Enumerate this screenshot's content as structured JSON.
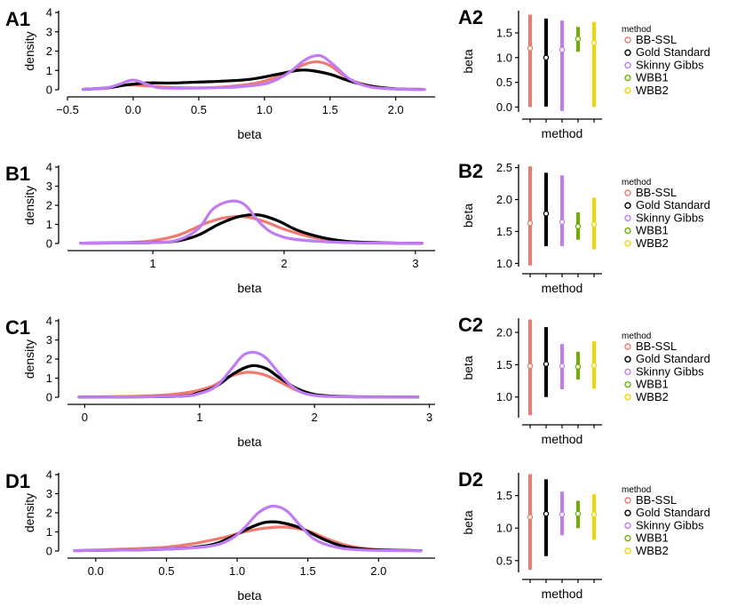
{
  "colors": {
    "BB-SSL": "#f07a70",
    "Gold Standard": "#000000",
    "Skinny Gibbs": "#c07cf5",
    "WBB1": "#6fae00",
    "WBB2": "#f2d400"
  },
  "chart_data": [
    {
      "id": "A1",
      "type": "line",
      "label": "A1",
      "xlabel": "beta",
      "ylabel": "density",
      "xlim": [
        -0.5,
        2.3
      ],
      "ylim": [
        0,
        4
      ],
      "xticks": [
        -0.5,
        0.0,
        0.5,
        1.0,
        1.5,
        2.0
      ],
      "xtick_labels": [
        "−0.5",
        "0.0",
        "0.5",
        "1.0",
        "1.5",
        "2.0"
      ],
      "yticks": [
        0,
        1,
        2,
        3,
        4
      ],
      "series": [
        {
          "name": "BB-SSL",
          "x": [
            -0.38,
            -0.2,
            -0.05,
            0.1,
            0.3,
            0.5,
            0.7,
            0.9,
            1.05,
            1.2,
            1.3,
            1.4,
            1.5,
            1.6,
            1.7,
            1.85,
            2.0,
            2.2
          ],
          "y": [
            0.02,
            0.08,
            0.25,
            0.2,
            0.12,
            0.1,
            0.15,
            0.3,
            0.55,
            0.95,
            1.3,
            1.45,
            1.25,
            0.75,
            0.4,
            0.15,
            0.05,
            0.02
          ]
        },
        {
          "name": "Gold Standard",
          "x": [
            -0.38,
            -0.2,
            -0.05,
            0.1,
            0.3,
            0.5,
            0.7,
            0.9,
            1.1,
            1.25,
            1.35,
            1.5,
            1.65,
            1.8,
            2.0,
            2.2
          ],
          "y": [
            0.02,
            0.1,
            0.25,
            0.35,
            0.35,
            0.4,
            0.45,
            0.55,
            0.8,
            1.0,
            1.0,
            0.8,
            0.45,
            0.2,
            0.05,
            0.02
          ]
        },
        {
          "name": "Skinny Gibbs",
          "x": [
            -0.38,
            -0.2,
            -0.1,
            0.0,
            0.1,
            0.2,
            0.4,
            0.6,
            0.8,
            1.0,
            1.1,
            1.2,
            1.3,
            1.38,
            1.45,
            1.55,
            1.65,
            1.8,
            2.0,
            2.22
          ],
          "y": [
            0.02,
            0.1,
            0.3,
            0.5,
            0.3,
            0.1,
            0.08,
            0.1,
            0.15,
            0.3,
            0.55,
            0.95,
            1.5,
            1.75,
            1.7,
            1.15,
            0.55,
            0.15,
            0.04,
            0.01
          ]
        }
      ]
    },
    {
      "id": "B1",
      "type": "line",
      "label": "B1",
      "xlabel": "beta",
      "ylabel": "density",
      "xlim": [
        0.35,
        3.15
      ],
      "ylim": [
        0,
        4
      ],
      "xticks": [
        1,
        2,
        3
      ],
      "xtick_labels": [
        "1",
        "2",
        "3"
      ],
      "yticks": [
        0,
        1,
        2,
        3,
        4
      ],
      "series": [
        {
          "name": "BB-SSL",
          "x": [
            0.45,
            0.8,
            1.0,
            1.2,
            1.4,
            1.55,
            1.7,
            1.85,
            2.0,
            2.2,
            2.4,
            2.6,
            3.05
          ],
          "y": [
            0.02,
            0.05,
            0.15,
            0.45,
            1.05,
            1.35,
            1.4,
            1.15,
            0.75,
            0.35,
            0.15,
            0.05,
            0.01
          ]
        },
        {
          "name": "Gold Standard",
          "x": [
            0.45,
            1.0,
            1.2,
            1.35,
            1.5,
            1.65,
            1.8,
            1.95,
            2.1,
            2.3,
            2.5,
            2.8,
            3.05
          ],
          "y": [
            0.02,
            0.05,
            0.15,
            0.45,
            1.0,
            1.4,
            1.5,
            1.2,
            0.7,
            0.3,
            0.1,
            0.03,
            0.01
          ]
        },
        {
          "name": "Skinny Gibbs",
          "x": [
            0.45,
            1.0,
            1.2,
            1.35,
            1.45,
            1.55,
            1.65,
            1.72,
            1.8,
            1.9,
            2.05,
            2.3,
            2.6,
            3.05
          ],
          "y": [
            0.02,
            0.05,
            0.2,
            0.8,
            1.75,
            2.15,
            2.2,
            1.9,
            1.2,
            0.6,
            0.25,
            0.1,
            0.03,
            0.01
          ]
        }
      ]
    },
    {
      "id": "C1",
      "type": "line",
      "label": "C1",
      "xlabel": "beta",
      "ylabel": "density",
      "xlim": [
        -0.15,
        3.05
      ],
      "ylim": [
        0,
        4
      ],
      "xticks": [
        0,
        1,
        2,
        3
      ],
      "xtick_labels": [
        "0",
        "1",
        "2",
        "3"
      ],
      "yticks": [
        0,
        1,
        2,
        3,
        4
      ],
      "series": [
        {
          "name": "BB-SSL",
          "x": [
            -0.05,
            0.4,
            0.7,
            0.9,
            1.1,
            1.25,
            1.4,
            1.55,
            1.7,
            1.85,
            2.0,
            2.3,
            2.9
          ],
          "y": [
            0.01,
            0.05,
            0.12,
            0.25,
            0.55,
            1.05,
            1.3,
            1.2,
            0.8,
            0.35,
            0.12,
            0.03,
            0.01
          ]
        },
        {
          "name": "Gold Standard",
          "x": [
            -0.05,
            0.8,
            1.0,
            1.15,
            1.3,
            1.45,
            1.58,
            1.7,
            1.85,
            2.0,
            2.2,
            2.5,
            2.9
          ],
          "y": [
            0.01,
            0.05,
            0.25,
            0.6,
            1.25,
            1.65,
            1.5,
            1.0,
            0.45,
            0.15,
            0.05,
            0.02,
            0.01
          ]
        },
        {
          "name": "Skinny Gibbs",
          "x": [
            -0.05,
            0.8,
            1.0,
            1.15,
            1.28,
            1.38,
            1.48,
            1.58,
            1.7,
            1.82,
            1.95,
            2.2,
            2.9
          ],
          "y": [
            0.01,
            0.05,
            0.2,
            0.6,
            1.5,
            2.2,
            2.35,
            2.05,
            1.2,
            0.5,
            0.15,
            0.03,
            0.01
          ]
        }
      ]
    },
    {
      "id": "D1",
      "type": "line",
      "label": "D1",
      "xlabel": "beta",
      "ylabel": "density",
      "xlim": [
        -0.2,
        2.4
      ],
      "ylim": [
        0,
        4
      ],
      "xticks": [
        0.0,
        0.5,
        1.0,
        1.5,
        2.0
      ],
      "xtick_labels": [
        "0.0",
        "0.5",
        "1.0",
        "1.5",
        "2.0"
      ],
      "yticks": [
        0,
        1,
        2,
        3,
        4
      ],
      "series": [
        {
          "name": "BB-SSL",
          "x": [
            -0.15,
            0.2,
            0.5,
            0.7,
            0.9,
            1.05,
            1.2,
            1.35,
            1.5,
            1.65,
            1.8,
            2.0,
            2.3
          ],
          "y": [
            0.02,
            0.1,
            0.2,
            0.4,
            0.7,
            1.0,
            1.2,
            1.25,
            1.05,
            0.6,
            0.25,
            0.07,
            0.02
          ]
        },
        {
          "name": "Gold Standard",
          "x": [
            -0.15,
            0.5,
            0.8,
            0.95,
            1.1,
            1.2,
            1.3,
            1.45,
            1.6,
            1.75,
            1.95,
            2.3
          ],
          "y": [
            0.02,
            0.1,
            0.3,
            0.7,
            1.25,
            1.5,
            1.5,
            1.2,
            0.65,
            0.25,
            0.07,
            0.02
          ]
        },
        {
          "name": "Skinny Gibbs",
          "x": [
            -0.15,
            0.5,
            0.8,
            0.95,
            1.05,
            1.15,
            1.25,
            1.35,
            1.45,
            1.55,
            1.7,
            1.9,
            2.3
          ],
          "y": [
            0.02,
            0.1,
            0.25,
            0.6,
            1.2,
            2.0,
            2.35,
            2.1,
            1.3,
            0.6,
            0.2,
            0.05,
            0.01
          ]
        }
      ]
    },
    {
      "id": "A2",
      "type": "interval",
      "label": "A2",
      "xlabel": "method",
      "ylabel": "beta",
      "ylim": [
        -0.1,
        1.95
      ],
      "yticks": [
        0.0,
        0.5,
        1.0,
        1.5
      ],
      "ytick_labels": [
        "0.0",
        "0.5",
        "1.0",
        "1.5"
      ],
      "legend_title": "method",
      "methods": [
        {
          "name": "BB-SSL",
          "low": 0.0,
          "high": 1.87,
          "point": 1.19
        },
        {
          "name": "Gold Standard",
          "low": 0.01,
          "high": 1.79,
          "point": 1.0
        },
        {
          "name": "Skinny Gibbs",
          "low": -0.08,
          "high": 1.75,
          "point": 1.16
        },
        {
          "name": "WBB1",
          "low": 1.12,
          "high": 1.62,
          "point": 1.38
        },
        {
          "name": "WBB2",
          "low": 0.0,
          "high": 1.72,
          "point": 1.3
        }
      ]
    },
    {
      "id": "B2",
      "type": "interval",
      "label": "B2",
      "xlabel": "method",
      "ylabel": "beta",
      "ylim": [
        0.95,
        2.55
      ],
      "yticks": [
        1.0,
        1.5,
        2.0,
        2.5
      ],
      "ytick_labels": [
        "1.0",
        "1.5",
        "2.0",
        "2.5"
      ],
      "legend_title": "method",
      "methods": [
        {
          "name": "BB-SSL",
          "low": 0.97,
          "high": 2.52,
          "point": 1.63
        },
        {
          "name": "Gold Standard",
          "low": 1.27,
          "high": 2.42,
          "point": 1.78
        },
        {
          "name": "Skinny Gibbs",
          "low": 1.27,
          "high": 2.38,
          "point": 1.65
        },
        {
          "name": "WBB1",
          "low": 1.37,
          "high": 1.8,
          "point": 1.58
        },
        {
          "name": "WBB2",
          "low": 1.22,
          "high": 2.03,
          "point": 1.61
        }
      ]
    },
    {
      "id": "C2",
      "type": "interval",
      "label": "C2",
      "xlabel": "method",
      "ylabel": "beta",
      "ylim": [
        0.68,
        2.22
      ],
      "yticks": [
        1.0,
        1.5,
        2.0
      ],
      "ytick_labels": [
        "1.0",
        "1.5",
        "2.0"
      ],
      "legend_title": "method",
      "methods": [
        {
          "name": "BB-SSL",
          "low": 0.72,
          "high": 2.2,
          "point": 1.48
        },
        {
          "name": "Gold Standard",
          "low": 1.0,
          "high": 2.08,
          "point": 1.51
        },
        {
          "name": "Skinny Gibbs",
          "low": 1.12,
          "high": 1.82,
          "point": 1.48
        },
        {
          "name": "WBB1",
          "low": 1.27,
          "high": 1.7,
          "point": 1.47
        },
        {
          "name": "WBB2",
          "low": 1.13,
          "high": 1.86,
          "point": 1.49
        }
      ]
    },
    {
      "id": "D2",
      "type": "interval",
      "label": "D2",
      "xlabel": "method",
      "ylabel": "beta",
      "ylim": [
        0.32,
        1.85
      ],
      "yticks": [
        0.5,
        1.0,
        1.5
      ],
      "ytick_labels": [
        "0.5",
        "1.0",
        "1.5"
      ],
      "legend_title": "method",
      "methods": [
        {
          "name": "BB-SSL",
          "low": 0.36,
          "high": 1.83,
          "point": 1.17
        },
        {
          "name": "Gold Standard",
          "low": 0.57,
          "high": 1.75,
          "point": 1.22
        },
        {
          "name": "Skinny Gibbs",
          "low": 0.89,
          "high": 1.56,
          "point": 1.21
        },
        {
          "name": "WBB1",
          "low": 1.0,
          "high": 1.42,
          "point": 1.22
        },
        {
          "name": "WBB2",
          "low": 0.82,
          "high": 1.52,
          "point": 1.21
        }
      ]
    }
  ]
}
